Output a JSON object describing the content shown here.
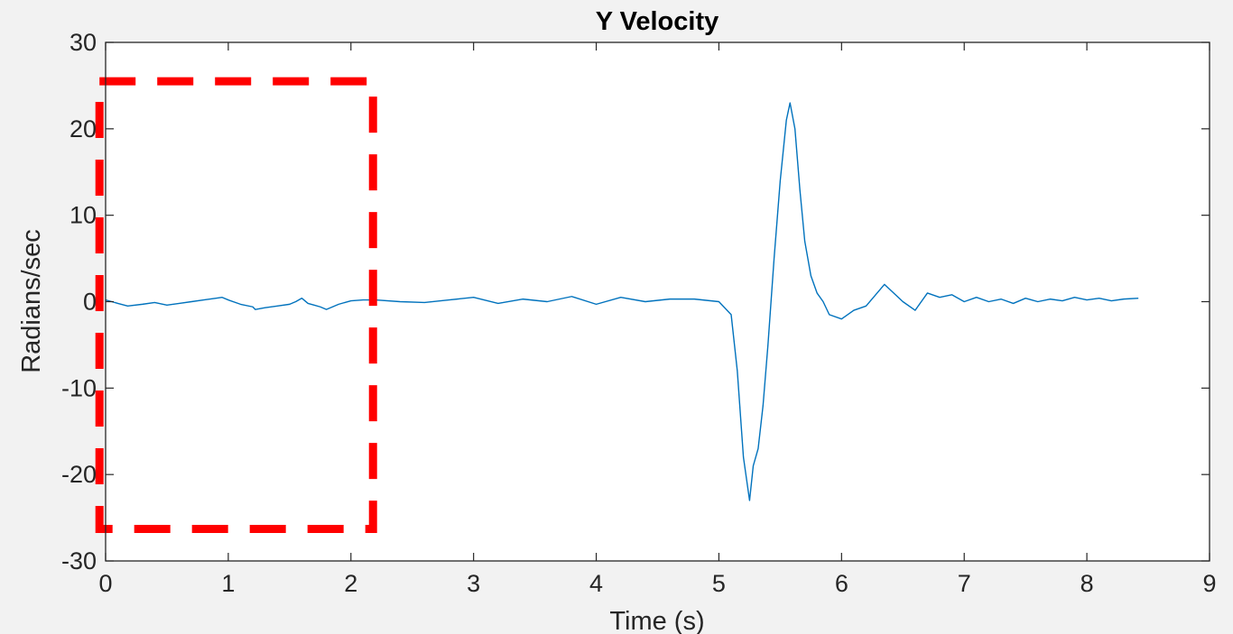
{
  "chart_data": {
    "type": "line",
    "title": "Y Velocity",
    "xlabel": "Time (s)",
    "ylabel": "Radians/sec",
    "xlim": [
      0,
      9
    ],
    "ylim": [
      -30,
      30
    ],
    "xticks": [
      0,
      1,
      2,
      3,
      4,
      5,
      6,
      7,
      8,
      9
    ],
    "yticks": [
      -30,
      -20,
      -10,
      0,
      10,
      20,
      30
    ],
    "xtick_labels": [
      "0",
      "1",
      "2",
      "3",
      "4",
      "5",
      "6",
      "7",
      "8",
      "9"
    ],
    "ytick_labels": [
      "-30",
      "-20",
      "-10",
      "0",
      "10",
      "20",
      "30"
    ],
    "grid": false,
    "series": [
      {
        "color": "#0072bd",
        "x": [
          0.0,
          0.05,
          0.1,
          0.18,
          0.3,
          0.4,
          0.5,
          0.6,
          0.7,
          0.8,
          0.9,
          0.95,
          1.0,
          1.1,
          1.2,
          1.22,
          1.3,
          1.4,
          1.5,
          1.55,
          1.6,
          1.65,
          1.7,
          1.75,
          1.8,
          1.9,
          2.0,
          2.1,
          2.2,
          2.4,
          2.6,
          2.8,
          3.0,
          3.2,
          3.4,
          3.6,
          3.8,
          4.0,
          4.2,
          4.4,
          4.6,
          4.8,
          5.0,
          5.1,
          5.15,
          5.2,
          5.25,
          5.28,
          5.32,
          5.36,
          5.4,
          5.45,
          5.5,
          5.55,
          5.58,
          5.62,
          5.66,
          5.7,
          5.75,
          5.8,
          5.85,
          5.9,
          6.0,
          6.1,
          6.2,
          6.35,
          6.5,
          6.6,
          6.7,
          6.8,
          6.9,
          7.0,
          7.1,
          7.2,
          7.3,
          7.4,
          7.5,
          7.6,
          7.7,
          7.8,
          7.9,
          8.0,
          8.1,
          8.2,
          8.3,
          8.42
        ],
        "y": [
          0.2,
          0.0,
          -0.2,
          -0.5,
          -0.3,
          -0.1,
          -0.4,
          -0.2,
          0.0,
          0.2,
          0.4,
          0.5,
          0.2,
          -0.3,
          -0.6,
          -0.9,
          -0.7,
          -0.5,
          -0.3,
          0.0,
          0.4,
          -0.2,
          -0.4,
          -0.6,
          -0.9,
          -0.3,
          0.1,
          0.2,
          0.2,
          0.0,
          -0.1,
          0.2,
          0.5,
          -0.2,
          0.3,
          0.0,
          0.6,
          -0.3,
          0.5,
          0.0,
          0.3,
          0.3,
          0.0,
          -1.5,
          -8.0,
          -18.0,
          -23.0,
          -19.0,
          -17.0,
          -12.0,
          -5.0,
          5.0,
          14.0,
          21.0,
          23.0,
          20.0,
          13.0,
          7.0,
          3.0,
          1.0,
          0.0,
          -1.5,
          -2.0,
          -1.0,
          -0.5,
          2.0,
          0.0,
          -1.0,
          1.0,
          0.5,
          0.8,
          0.0,
          0.5,
          0.0,
          0.3,
          -0.2,
          0.4,
          0.0,
          0.3,
          0.1,
          0.5,
          0.2,
          0.4,
          0.1,
          0.3,
          0.4
        ]
      }
    ],
    "annotation": {
      "type": "dashed-rectangle",
      "color": "#ff0000",
      "x_range": [
        -0.05,
        2.18
      ],
      "y_range": [
        -26.3,
        25.5
      ]
    }
  }
}
